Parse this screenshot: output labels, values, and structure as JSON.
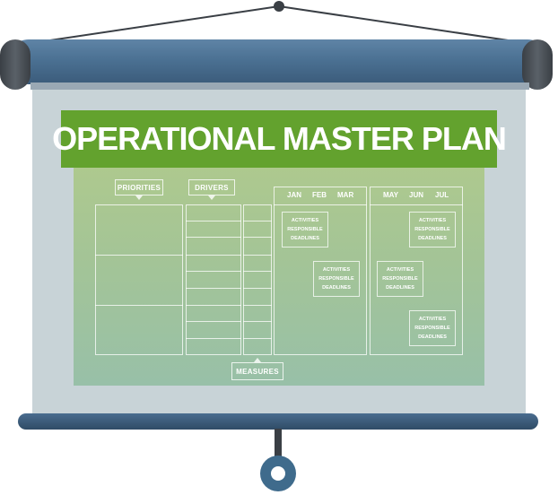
{
  "title": "OPERATIONAL MASTER PLAN",
  "labels": {
    "priorities": "PRIORITIES",
    "drivers": "DRIVERS",
    "measures": "MEASURES"
  },
  "months_q1": [
    "JAN",
    "FEB",
    "MAR"
  ],
  "months_q2": [
    "MAY",
    "JUN",
    "JUL"
  ],
  "activity_lines": [
    "ACTIVITIES",
    "RESPONSIBLE",
    "DEADLINES"
  ],
  "colors": {
    "banner": "#63a22e",
    "roller": "#4b7193",
    "screen": "#c8d3d7",
    "panel": "#a3c497"
  }
}
